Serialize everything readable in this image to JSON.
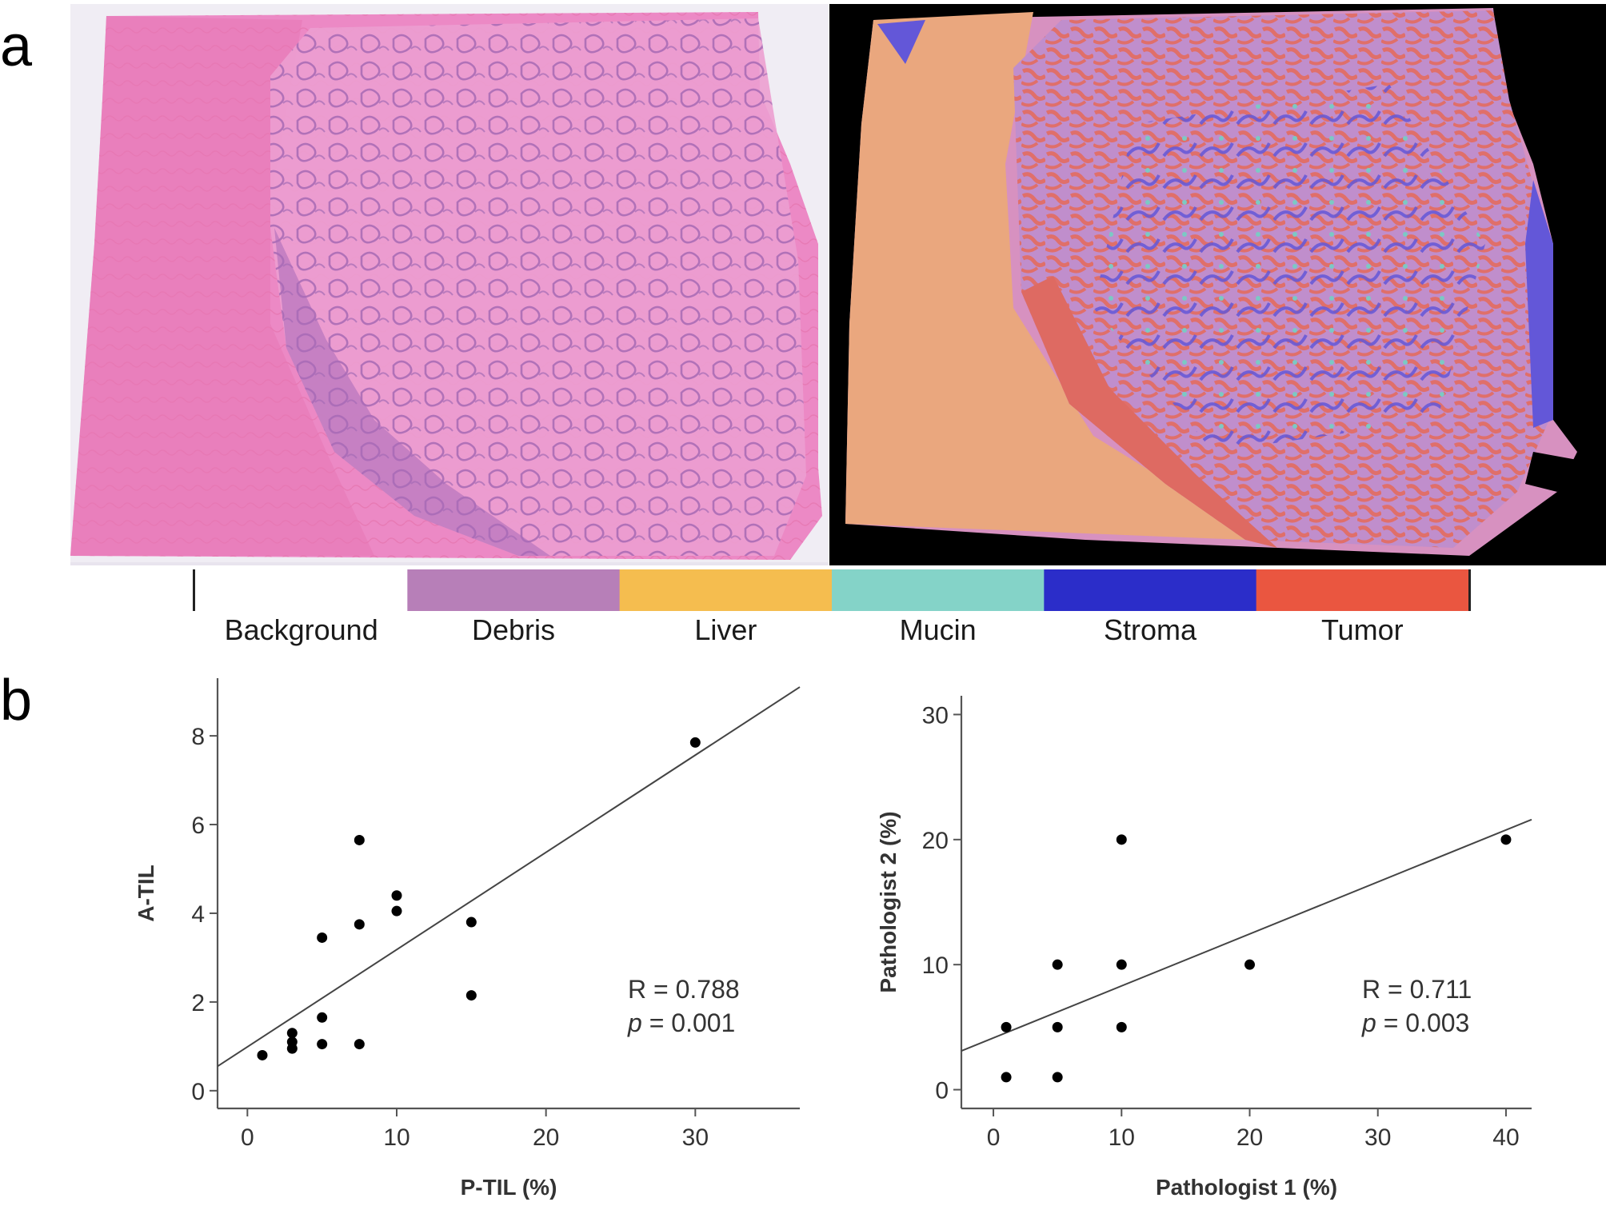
{
  "panel_labels": {
    "a": "a",
    "b": "b"
  },
  "legend": {
    "items": [
      {
        "label": "Background",
        "color": "#ffffff"
      },
      {
        "label": "Debris",
        "color": "#b77fb8"
      },
      {
        "label": "Liver",
        "color": "#f5bd4f"
      },
      {
        "label": "Mucin",
        "color": "#84d3c8"
      },
      {
        "label": "Stroma",
        "color": "#2b2dc9"
      },
      {
        "label": "Tumor",
        "color": "#ea5640"
      }
    ]
  },
  "chart_data": [
    {
      "type": "scatter",
      "title": "",
      "xlabel": "P-TIL (%)",
      "ylabel": "A-TIL",
      "xlim": [
        -2,
        37
      ],
      "ylim": [
        -0.4,
        9.3
      ],
      "xticks": [
        0,
        10,
        20,
        30
      ],
      "yticks": [
        0,
        2,
        4,
        6,
        8
      ],
      "points": [
        {
          "x": 1,
          "y": 0.8
        },
        {
          "x": 3,
          "y": 0.95
        },
        {
          "x": 3,
          "y": 1.1
        },
        {
          "x": 3,
          "y": 1.3
        },
        {
          "x": 5,
          "y": 1.05
        },
        {
          "x": 5,
          "y": 1.65
        },
        {
          "x": 5,
          "y": 3.45
        },
        {
          "x": 7.5,
          "y": 1.05
        },
        {
          "x": 7.5,
          "y": 3.75
        },
        {
          "x": 7.5,
          "y": 5.65
        },
        {
          "x": 10,
          "y": 4.05
        },
        {
          "x": 10,
          "y": 4.4
        },
        {
          "x": 15,
          "y": 2.15
        },
        {
          "x": 15,
          "y": 3.8
        },
        {
          "x": 30,
          "y": 7.85
        }
      ],
      "fit_line": {
        "x": [
          -2,
          37
        ],
        "y": [
          0.55,
          9.1
        ]
      },
      "annotation": {
        "r_text": "R = 0.788",
        "p_label": "p",
        "p_text": " = 0.001"
      }
    },
    {
      "type": "scatter",
      "title": "",
      "xlabel": "Pathologist 1 (%)",
      "ylabel": "Pathologist 2 (%)",
      "xlim": [
        -2.5,
        42
      ],
      "ylim": [
        -1.5,
        31.5
      ],
      "xticks": [
        0,
        10,
        20,
        30,
        40
      ],
      "yticks": [
        0,
        10,
        20,
        30
      ],
      "points": [
        {
          "x": 1,
          "y": 1
        },
        {
          "x": 1,
          "y": 5
        },
        {
          "x": 5,
          "y": 1
        },
        {
          "x": 5,
          "y": 5
        },
        {
          "x": 5,
          "y": 10
        },
        {
          "x": 10,
          "y": 5
        },
        {
          "x": 10,
          "y": 10
        },
        {
          "x": 10,
          "y": 20
        },
        {
          "x": 20,
          "y": 10
        },
        {
          "x": 40,
          "y": 20
        }
      ],
      "fit_line": {
        "x": [
          -2.5,
          42
        ],
        "y": [
          3.1,
          21.6
        ]
      },
      "annotation": {
        "r_text": "R = 0.711",
        "p_label": "p",
        "p_text": " = 0.003"
      }
    }
  ]
}
